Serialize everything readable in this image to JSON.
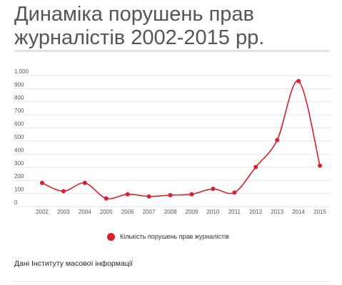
{
  "title": "Динаміка порушень прав журналістів 2002-2015 рр.",
  "source_note": "Дані Інституту масової інформації",
  "colors": {
    "series": "#d8202a",
    "grid": "#e6e6e6",
    "title_text": "#555555",
    "rule": "#e2e2e2"
  },
  "chart_data": {
    "type": "line",
    "title": "",
    "xlabel": "",
    "ylabel": "",
    "x": [
      "2002",
      "2003",
      "2004",
      "2005",
      "2006",
      "2007",
      "2008",
      "2009",
      "2010",
      "2011",
      "2012",
      "2013",
      "2014",
      "2015"
    ],
    "series": [
      {
        "name": "Кількість порушень прав журналістів",
        "values": [
          148,
          85,
          148,
          30,
          62,
          45,
          55,
          62,
          103,
          75,
          270,
          475,
          925,
          280
        ]
      }
    ],
    "ylim": [
      0,
      1000
    ],
    "y_ticks": [
      "0",
      "100",
      "200",
      "300",
      "400",
      "500",
      "600",
      "700",
      "800",
      "900",
      "1,000"
    ],
    "grid": true,
    "smooth": true,
    "markers": true,
    "legend_position": "bottom"
  }
}
